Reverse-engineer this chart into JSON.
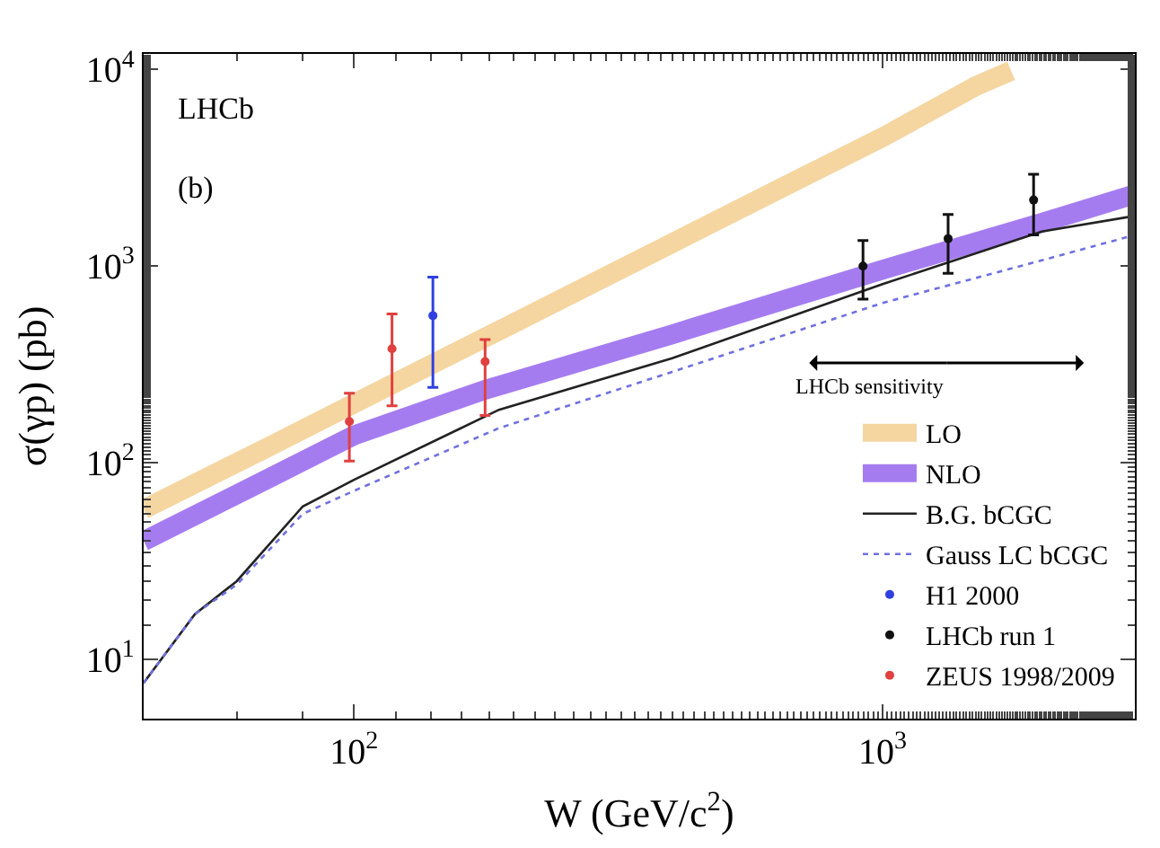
{
  "chart_data": {
    "type": "line",
    "xlabel": "W (GeV/c$^{2}$)",
    "ylabel": "σ(γp) (pb)",
    "log": "xy",
    "xlim": [
      40,
      3000
    ],
    "ylim": [
      5,
      12000
    ],
    "xticks": [
      {
        "value": 100,
        "label": "10$^{2}$"
      },
      {
        "value": 1000,
        "label": "10$^{3}$"
      }
    ],
    "yticks": [
      {
        "value": 10,
        "label": "10$^{1}$"
      },
      {
        "value": 100,
        "label": "10$^{2}$"
      },
      {
        "value": 1000,
        "label": "10$^{3}$"
      },
      {
        "value": 10000,
        "label": "10$^{4}$"
      }
    ],
    "legend": "bottom right",
    "annotations": [
      "LHCb",
      "(b)",
      "LHCb sensitivity"
    ],
    "series": [
      {
        "name": "LO",
        "color": "#f5d5a0",
        "x": [
          40,
          70,
          100,
          200,
          400,
          700,
          1000,
          1500,
          1750
        ],
        "values": [
          58,
          123,
          200,
          511,
          1310,
          2800,
          4520,
          8230,
          9830
        ]
      },
      {
        "name": "NLO",
        "color": "#a57cf0",
        "x": [
          40,
          70,
          100,
          177,
          400,
          1000,
          2000,
          3000
        ],
        "values": [
          40,
          85,
          138,
          235,
          450,
          960,
          1660,
          2320
        ]
      },
      {
        "name": "B.G. bCGC",
        "color": "#222222",
        "line_style": "solid",
        "x": [
          40,
          50,
          60,
          80,
          100,
          188,
          400,
          1000,
          2000,
          3000
        ],
        "values": [
          7.6,
          17,
          25,
          60,
          82,
          186,
          340,
          810,
          1500,
          1800
        ]
      },
      {
        "name": "Gauss LC bCGC",
        "color": "#7070e0",
        "line_style": "dotted",
        "x": [
          40,
          50,
          60,
          80,
          100,
          188,
          400,
          1000,
          2000,
          3000
        ],
        "values": [
          7.6,
          17,
          24,
          55,
          72,
          150,
          290,
          650,
          1070,
          1440
        ]
      },
      {
        "name": "H1 2000",
        "type": "scatter",
        "color": "#3040e0",
        "x": [
          141
        ],
        "values": [
          560
        ],
        "errors": [
          [
            242,
            880
          ]
        ]
      },
      {
        "name": "LHCb run 1",
        "type": "scatter",
        "color": "#111111",
        "x": [
          918,
          1330,
          1930
        ],
        "values": [
          1000,
          1380,
          2170
        ],
        "errors": [
          [
            680,
            1350
          ],
          [
            920,
            1830
          ],
          [
            1440,
            2930
          ]
        ]
      },
      {
        "name": "ZEUS 1998/2009",
        "type": "scatter",
        "color": "#e04040",
        "x": [
          98,
          118,
          177
        ],
        "values": [
          162,
          380,
          327
        ],
        "errors": [
          [
            102,
            226
          ],
          [
            195,
            571
          ],
          [
            174,
            423
          ]
        ]
      }
    ]
  }
}
